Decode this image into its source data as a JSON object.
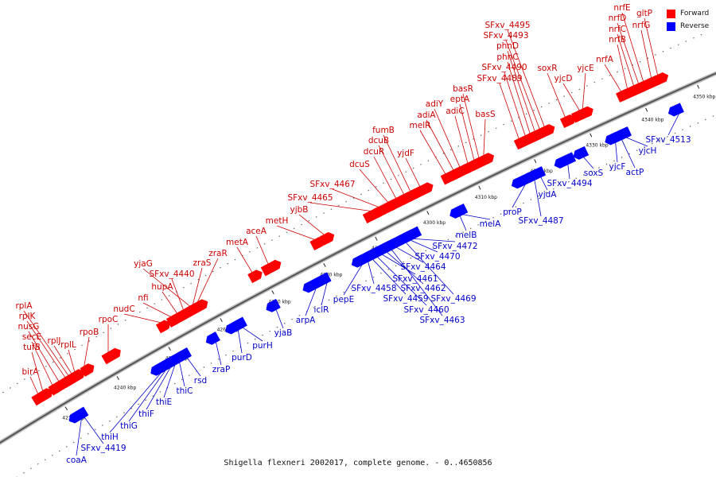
{
  "caption": "Shigella flexneri 2002017, complete genome. - 0..4650856",
  "legend": [
    {
      "label": "Forward",
      "color": "#ff0000"
    },
    {
      "label": "Reverse",
      "color": "#0000ff"
    }
  ],
  "ticks": [
    "4230 kbp",
    "4240 kbp",
    "4250 kbp",
    "4260 kbp",
    "4270 kbp",
    "4280 kbp",
    "4290 kbp",
    "4300 kbp",
    "4310 kbp",
    "4320 kbp",
    "4330 kbp",
    "4340 kbp",
    "4350 kbp"
  ],
  "forward_genes": [
    "birA",
    "tufB",
    "secE",
    "nusG",
    "rplK",
    "rplA",
    "rplJ",
    "rplL",
    "rpoB",
    "rpoC",
    "nudC",
    "nfi",
    "hupA",
    "SFxv_4440",
    "yjaG",
    "zraS",
    "zraR",
    "metA",
    "aceA",
    "metH",
    "yjbB",
    "SFxv_4465",
    "SFxv_4467",
    "dcuS",
    "dcuR",
    "dcuB",
    "fumB",
    "yjdF",
    "melR",
    "adiA",
    "adiY",
    "adiC",
    "eptA",
    "basR",
    "basS",
    "SFxv_4489",
    "SFxv_4490",
    "phnC",
    "phnD",
    "SFxv_4493",
    "SFxv_4495",
    "soxR",
    "yjcD",
    "yjcE",
    "nrfA",
    "nrfB",
    "nrfC",
    "nrfD",
    "nrfE",
    "nrfG",
    "gltP"
  ],
  "reverse_genes": [
    "coaA",
    "SFxv_4419",
    "thiH",
    "thiG",
    "thiF",
    "thiE",
    "thiC",
    "rsd",
    "zraP",
    "purD",
    "purH",
    "yjaB",
    "arpA",
    "iclR",
    "pepE",
    "SFxv_4458",
    "SFxv_4459",
    "SFxv_4460",
    "SFxv_4461",
    "SFxv_4462",
    "SFxv_4463",
    "SFxv_4464",
    "SFxv_4469",
    "SFxv_4470",
    "SFxv_4472",
    "melB",
    "melA",
    "proP",
    "SFxv_4487",
    "yjdA",
    "SFxv_4494",
    "soxS",
    "yjcF",
    "actP",
    "yjcH",
    "SFxv_4513"
  ]
}
